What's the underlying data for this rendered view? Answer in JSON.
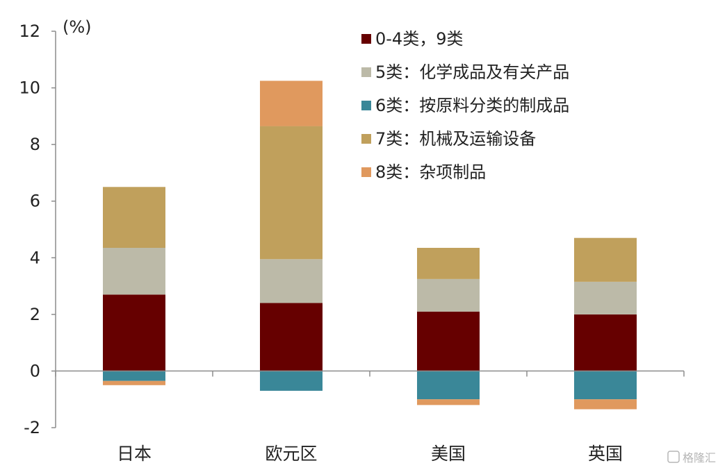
{
  "chart_data": {
    "type": "bar",
    "stacked": true,
    "unit_label": "(%)",
    "categories": [
      "日本",
      "欧元区",
      "美国",
      "英国"
    ],
    "ylim": [
      -2,
      12
    ],
    "yticks": [
      "-2",
      "0",
      "2",
      "4",
      "6",
      "8",
      "10",
      "12"
    ],
    "grid": false,
    "legend_position": "top-right",
    "series": [
      {
        "name": "0-4类，9类",
        "color": "#660000",
        "values": [
          2.7,
          2.4,
          2.1,
          2.0
        ]
      },
      {
        "name": "5类：化学成品及有关产品",
        "color": "#bcbaa8",
        "values": [
          1.65,
          1.55,
          1.15,
          1.15
        ]
      },
      {
        "name": "6类：按原料分类的制成品",
        "color": "#3a8798",
        "values": [
          -0.35,
          -0.7,
          -1.0,
          -1.0
        ]
      },
      {
        "name": "7类：机械及运输设备",
        "color": "#c0a05c",
        "values": [
          2.15,
          4.7,
          1.1,
          1.55
        ]
      },
      {
        "name": "8类：杂项制品",
        "color": "#e0995e",
        "values": [
          -0.15,
          1.6,
          -0.2,
          -0.35
        ]
      }
    ]
  },
  "watermark": "格隆汇"
}
